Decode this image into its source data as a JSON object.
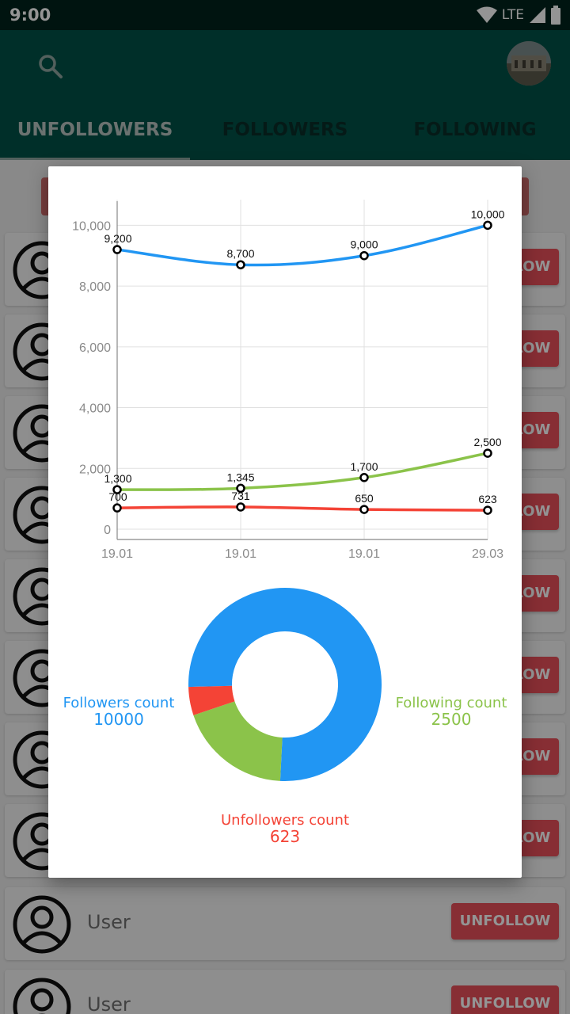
{
  "status_bar": {
    "time": "9:00",
    "network": "LTE"
  },
  "app_bar": {
    "tabs": [
      {
        "label": "UNFOLLOWERS",
        "active": true
      },
      {
        "label": "FOLLOWERS",
        "active": false
      },
      {
        "label": "FOLLOWING",
        "active": false
      }
    ]
  },
  "list": {
    "rows": [
      {
        "name": "",
        "action": "UNFOLLOW"
      },
      {
        "name": "",
        "action": "UNFOLLOW"
      },
      {
        "name": "",
        "action": "UNFOLLOW"
      },
      {
        "name": "",
        "action": "UNFOLLOW"
      },
      {
        "name": "",
        "action": "UNFOLLOW"
      },
      {
        "name": "",
        "action": "UNFOLLOW"
      },
      {
        "name": "",
        "action": "UNFOLLOW"
      },
      {
        "name": "",
        "action": "UNFOLLOW"
      },
      {
        "name": "User",
        "action": "UNFOLLOW"
      },
      {
        "name": "User",
        "action": "UNFOLLOW"
      }
    ]
  },
  "dialog": {
    "legend": {
      "followers_label": "Followers count",
      "followers_value": "10000",
      "following_label": "Following count",
      "following_value": "2500",
      "unfollowers_label": "Unfollowers count",
      "unfollowers_value": "623"
    }
  },
  "colors": {
    "followers": "#2196f3",
    "following": "#8bc34a",
    "unfollowers": "#f44336",
    "app_bar": "#005147",
    "status_bar": "#00241c"
  },
  "chart_data": [
    {
      "type": "line",
      "x": [
        "19.01",
        "19.01",
        "19.01",
        "29.03"
      ],
      "ylim": [
        0,
        11000
      ],
      "yticks": [
        "0",
        "2,000",
        "4,000",
        "6,000",
        "8,000",
        "10,000"
      ],
      "grid": true,
      "series": [
        {
          "values": [
            9200,
            8700,
            9000,
            10000
          ],
          "labels": [
            "9,200",
            "8,700",
            "9,000",
            "10,000"
          ],
          "color": "#2196f3"
        },
        {
          "values": [
            1300,
            1345,
            1700,
            2500
          ],
          "labels": [
            "1,300",
            "1,345",
            "1,700",
            "2,500"
          ],
          "color": "#8bc34a"
        },
        {
          "values": [
            700,
            731,
            650,
            623
          ],
          "labels": [
            "700",
            "731",
            "650",
            "623"
          ],
          "color": "#f44336"
        }
      ]
    },
    {
      "type": "pie",
      "donut": true,
      "series": [
        {
          "name": "Followers count",
          "value": 10000,
          "color": "#2196f3"
        },
        {
          "name": "Following count",
          "value": 2500,
          "color": "#8bc34a"
        },
        {
          "name": "Unfollowers count",
          "value": 623,
          "color": "#f44336"
        }
      ]
    }
  ]
}
